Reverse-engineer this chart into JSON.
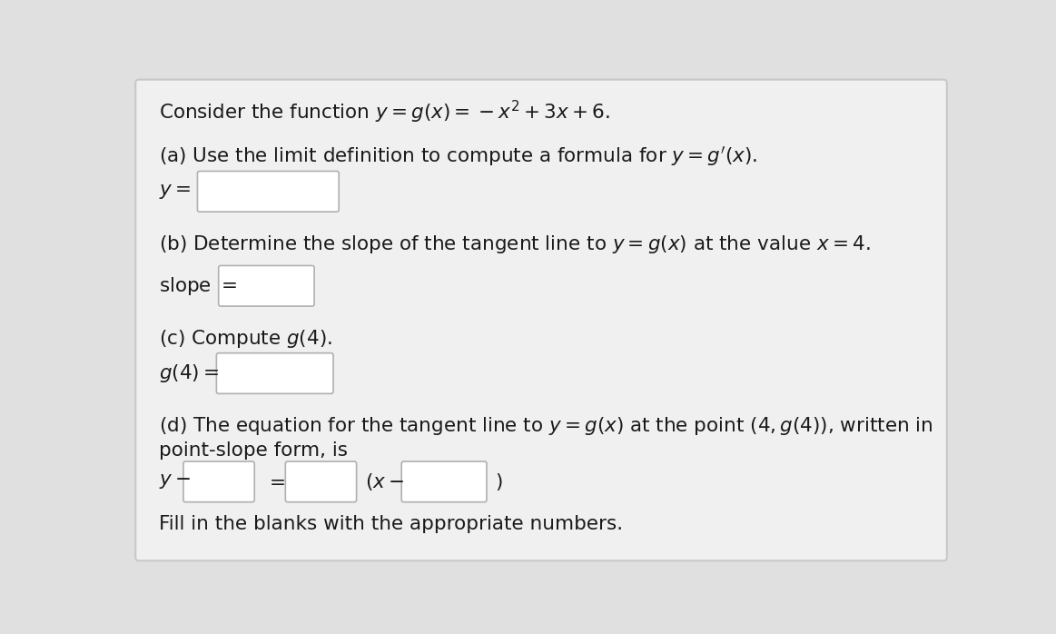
{
  "bg_color": "#e0e0e0",
  "content_bg": "#f0f0f0",
  "text_color": "#1a1a1a",
  "box_fill": "#ffffff",
  "box_edge": "#b0b0b0",
  "font_size": 15.5,
  "title_line": "Consider the function $y = g(x) = -x^2 + 3x + 6$.",
  "part_a_label": "(a) Use the limit definition to compute a formula for $y = g'(x)$.",
  "part_a_prefix": "$y = $",
  "part_b_label": "(b) Determine the slope of the tangent line to $y = g(x)$ at the value $x = 4$.",
  "part_b_prefix": "slope $=$",
  "part_c_label": "(c) Compute $g(4)$.",
  "part_c_prefix": "$g(4) =$",
  "part_d_label1": "(d) The equation for the tangent line to $y = g(x)$ at the point $(4, g(4))$, written in",
  "part_d_label2": "point-slope form, is",
  "part_d_y": "$y-$",
  "part_d_eq": "$=$",
  "part_d_xminus": "$(x-$",
  "part_d_close": "$)$",
  "fill_in": "Fill in the blanks with the appropriate numbers."
}
